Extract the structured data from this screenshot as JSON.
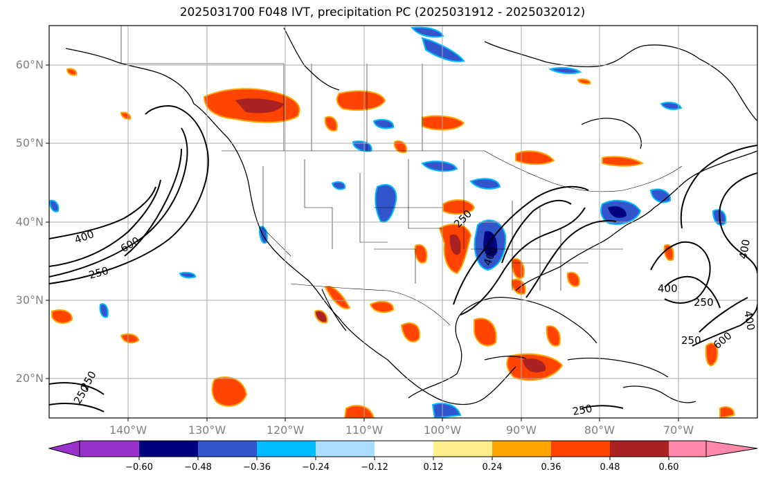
{
  "title": "2025031700 F048 IVT, precipitation PC (2025031912 - 2025032012)",
  "map": {
    "lat_labels": [
      "60°N",
      "50°N",
      "40°N",
      "30°N",
      "20°N"
    ],
    "lat_values": [
      60,
      50,
      40,
      30,
      20
    ],
    "lon_labels": [
      "140°W",
      "130°W",
      "120°W",
      "110°W",
      "100°W",
      "90°W",
      "80°W",
      "70°W"
    ],
    "lon_values": [
      -140,
      -130,
      -120,
      -110,
      -100,
      -90,
      -80,
      -70
    ],
    "lon_range": [
      -150,
      -60
    ],
    "lat_range": [
      15,
      65
    ],
    "contour_labels": [
      "400",
      "600",
      "250",
      "250",
      "400",
      "250",
      "400",
      "400",
      "250",
      "250",
      "600",
      "400",
      "250",
      "250"
    ]
  },
  "colorbar": {
    "ticks": [
      "−0.60",
      "−0.48",
      "−0.36",
      "−0.24",
      "−0.12",
      "0.12",
      "0.24",
      "0.36",
      "0.48",
      "0.60"
    ],
    "under_color": "#9933cc",
    "over_color": "#ff88aa",
    "colors": [
      "#000080",
      "#3355cc",
      "#00bbff",
      "#aaddff",
      "#ffffff",
      "#ffee88",
      "#ffa500",
      "#ff4400",
      "#aa2222"
    ]
  }
}
